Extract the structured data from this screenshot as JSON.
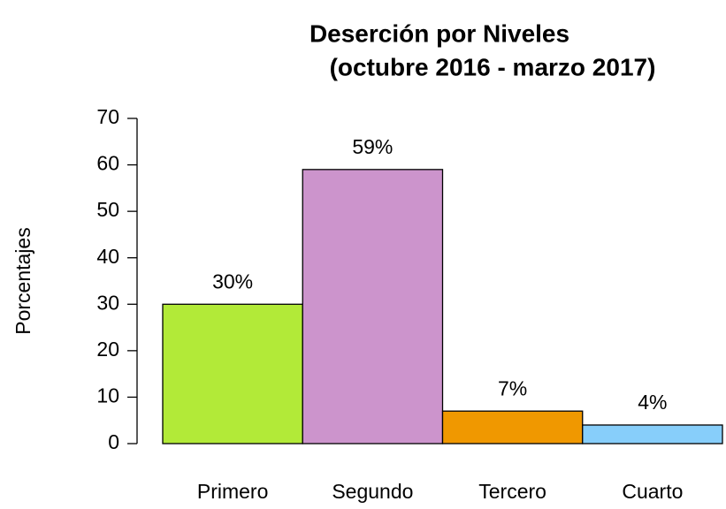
{
  "chart_data": {
    "type": "bar",
    "title": "Deserción por Niveles",
    "subtitle": "(octubre 2016 - marzo 2017)",
    "y_label": "Porcentajes",
    "categories": [
      "Primero",
      "Segundo",
      "Tercero",
      "Cuarto"
    ],
    "values": [
      30,
      59,
      7,
      4
    ],
    "value_labels": [
      "30%",
      "59%",
      "7%",
      "4%"
    ],
    "colors": [
      "#b2ea38",
      "#cc94cc",
      "#f09800",
      "#87cefa"
    ],
    "ylim": [
      0,
      70
    ],
    "yticks": [
      0,
      10,
      20,
      30,
      40,
      50,
      60,
      70
    ],
    "grid": false
  }
}
